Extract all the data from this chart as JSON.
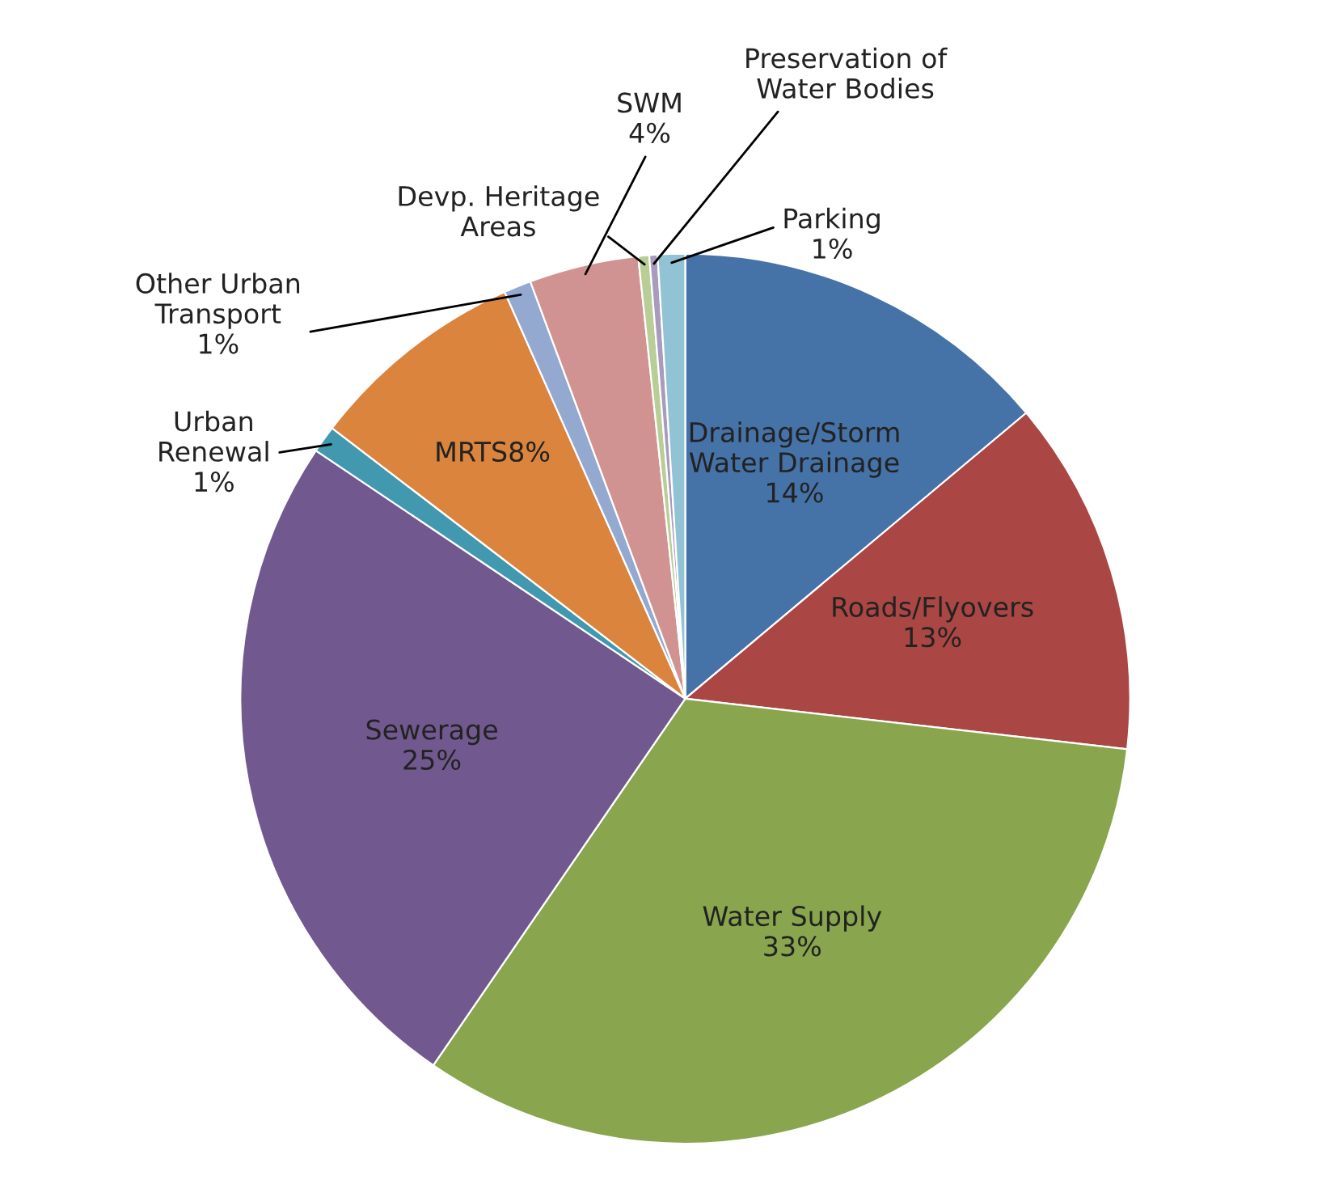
{
  "chart_data": {
    "type": "pie",
    "categories": [
      "Drainage/Storm Water Drainage",
      "Roads/Flyovers",
      "Water Supply",
      "Sewerage",
      "Urban Renewal",
      "MRTS",
      "Other Urban Transport",
      "SWM",
      "Devp. Heritage Areas",
      "Preservation of Water Bodies",
      "Parking"
    ],
    "values": [
      14,
      13,
      33,
      25,
      1,
      8,
      1,
      4,
      0.4,
      0.3,
      1
    ],
    "value_labels": [
      "14%",
      "13%",
      "33%",
      "25%",
      "1%",
      "8%",
      "1%",
      "4%",
      null,
      null,
      "1%"
    ],
    "colors": [
      "#4572a7",
      "#aa4643",
      "#89a54e",
      "#71588f",
      "#4198af",
      "#db843d",
      "#93a9cf",
      "#d19392",
      "#b9cd96",
      "#a99bbd",
      "#92c3d5"
    ],
    "legend": false
  }
}
